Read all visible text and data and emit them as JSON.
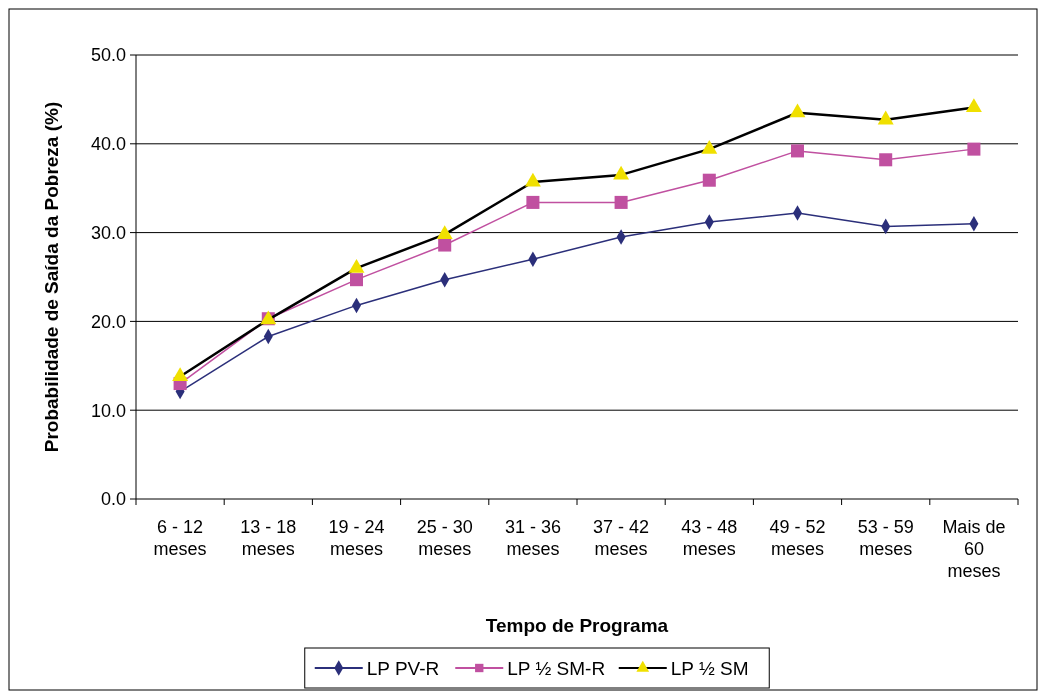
{
  "chart_data": {
    "type": "line",
    "xlabel": "Tempo de Programa",
    "ylabel": "Probabilidade de Saída da Pobreza (%)",
    "categories": [
      "6 - 12\nmeses",
      "13 - 18\nmeses",
      "19 - 24\nmeses",
      "25 - 30\nmeses",
      "31 - 36\nmeses",
      "37 - 42\nmeses",
      "43 - 48\nmeses",
      "49 - 52\nmeses",
      "53 - 59\nmeses",
      "Mais de\n60\nmeses"
    ],
    "series": [
      {
        "name": "LP PV-R",
        "color": "#2b2f7a",
        "marker": "diamond",
        "values": [
          12.1,
          18.3,
          21.8,
          24.7,
          27.0,
          29.5,
          31.2,
          32.2,
          30.7,
          31.0
        ]
      },
      {
        "name": "LP ½ SM-R",
        "color": "#c050a0",
        "marker": "square",
        "values": [
          13.0,
          20.3,
          24.7,
          28.6,
          33.4,
          33.4,
          35.9,
          39.2,
          38.2,
          39.4
        ]
      },
      {
        "name": "LP ½ SM",
        "color": "#000000",
        "marker": "triangle",
        "colors": [
          "#f0e000",
          "#f0e000",
          "#f0e000",
          "#f0e000",
          "#f0e000",
          "#f0e000",
          "#f0e000",
          "#f0e000",
          "#f0e000",
          "#f0e000"
        ],
        "values": [
          13.8,
          20.2,
          26.0,
          29.8,
          35.7,
          36.5,
          39.4,
          43.5,
          42.7,
          44.1
        ]
      }
    ],
    "ylim": [
      0,
      50
    ],
    "yticks": [
      {
        "value": 0,
        "label": "0.0"
      },
      {
        "value": 10,
        "label": "10.0"
      },
      {
        "value": 20,
        "label": "20.0"
      },
      {
        "value": 30,
        "label": "30.0"
      },
      {
        "value": 40,
        "label": "40.0"
      },
      {
        "value": 50,
        "label": "50.0"
      }
    ],
    "grid": "y",
    "legend": "bottom"
  }
}
